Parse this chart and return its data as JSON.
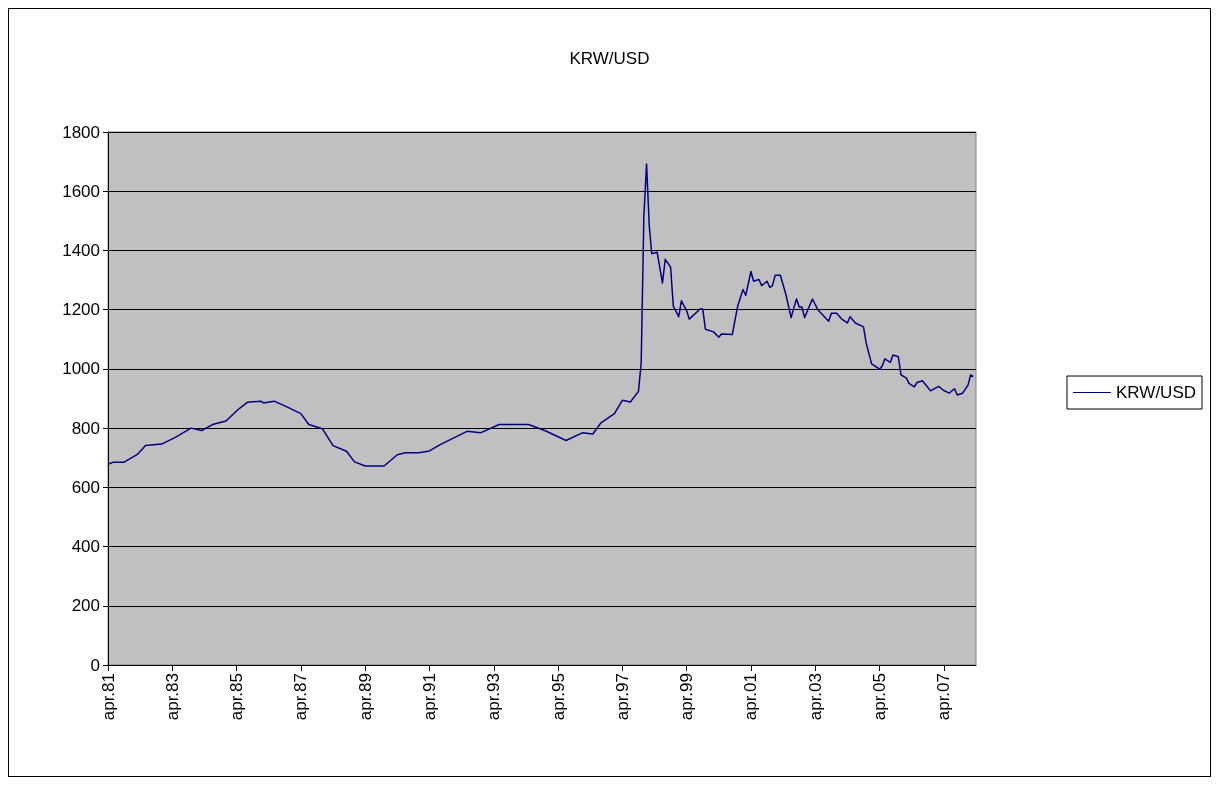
{
  "chart_data": {
    "type": "line",
    "title": "KRW/USD",
    "x": [
      "1981-04",
      "1981-06",
      "1981-10",
      "1982-03",
      "1982-06",
      "1982-12",
      "1983-05",
      "1983-11",
      "1984-03",
      "1984-07",
      "1984-12",
      "1985-05",
      "1985-08",
      "1986-01",
      "1986-02",
      "1986-06",
      "1986-10",
      "1987-04",
      "1987-07",
      "1987-12",
      "1988-04",
      "1988-09",
      "1988-12",
      "1989-04",
      "1989-11",
      "1990-04",
      "1990-07",
      "1990-12",
      "1991-04",
      "1991-08",
      "1992-06",
      "1992-11",
      "1993-06",
      "1994-05",
      "1994-11",
      "1995-07",
      "1996-01",
      "1996-05",
      "1996-08",
      "1997-01",
      "1997-04",
      "1997-07",
      "1997-10",
      "1997-11",
      "1997-12",
      "1998-01",
      "1998-02",
      "1998-03",
      "1998-05",
      "1998-07",
      "1998-08",
      "1998-10",
      "1998-11",
      "1999-01",
      "1999-02",
      "1999-04",
      "1999-05",
      "1999-09",
      "1999-10",
      "1999-11",
      "2000-02",
      "2000-04",
      "2000-05",
      "2000-09",
      "2000-11",
      "2001-01",
      "2001-02",
      "2001-04",
      "2001-05",
      "2001-07",
      "2001-08",
      "2001-10",
      "2001-11",
      "2001-12",
      "2002-01",
      "2002-03",
      "2002-05",
      "2002-07",
      "2002-08",
      "2002-09",
      "2002-10",
      "2002-11",
      "2002-12",
      "2003-03",
      "2003-05",
      "2003-09",
      "2003-10",
      "2003-12",
      "2004-02",
      "2004-04",
      "2004-05",
      "2004-07",
      "2004-10",
      "2004-11",
      "2005-01",
      "2005-04",
      "2005-05",
      "2005-06",
      "2005-08",
      "2005-09",
      "2005-11",
      "2005-12",
      "2006-02",
      "2006-03",
      "2006-05",
      "2006-06",
      "2006-08",
      "2006-11",
      "2007-02",
      "2007-04",
      "2007-06",
      "2007-08",
      "2007-09",
      "2007-11",
      "2008-01",
      "2008-02",
      "2008-03"
    ],
    "series": [
      {
        "name": "KRW/USD",
        "color": "#000080",
        "values": [
          678,
          685,
          685,
          711,
          741,
          746,
          768,
          800,
          792,
          812,
          824,
          866,
          887,
          891,
          885,
          891,
          875,
          849,
          812,
          798,
          741,
          722,
          686,
          672,
          672,
          710,
          717,
          717,
          723,
          744,
          789,
          784,
          812,
          812,
          792,
          758,
          784,
          780,
          818,
          849,
          894,
          888,
          924,
          1020,
          1512,
          1692,
          1482,
          1389,
          1394,
          1290,
          1370,
          1344,
          1212,
          1176,
          1230,
          1197,
          1168,
          1202,
          1202,
          1134,
          1125,
          1107,
          1118,
          1116,
          1212,
          1268,
          1248,
          1329,
          1296,
          1302,
          1281,
          1296,
          1275,
          1281,
          1316,
          1316,
          1254,
          1173,
          1206,
          1236,
          1209,
          1209,
          1173,
          1236,
          1200,
          1161,
          1188,
          1188,
          1167,
          1155,
          1176,
          1155,
          1142,
          1086,
          1017,
          999,
          1010,
          1034,
          1022,
          1047,
          1041,
          980,
          969,
          951,
          939,
          954,
          960,
          926,
          941,
          927,
          918,
          933,
          912,
          918,
          945,
          980,
          974
        ]
      }
    ],
    "xlim": [
      "1981-04",
      "2008-04"
    ],
    "xticks": [
      {
        "value": "1981-04",
        "label": "apr.81"
      },
      {
        "value": "1983-04",
        "label": "apr.83"
      },
      {
        "value": "1985-04",
        "label": "apr.85"
      },
      {
        "value": "1987-04",
        "label": "apr.87"
      },
      {
        "value": "1989-04",
        "label": "apr.89"
      },
      {
        "value": "1991-04",
        "label": "apr.91"
      },
      {
        "value": "1993-04",
        "label": "apr.93"
      },
      {
        "value": "1995-04",
        "label": "apr.95"
      },
      {
        "value": "1997-04",
        "label": "apr.97"
      },
      {
        "value": "1999-04",
        "label": "apr.99"
      },
      {
        "value": "2001-04",
        "label": "apr.01"
      },
      {
        "value": "2003-04",
        "label": "apr.03"
      },
      {
        "value": "2005-04",
        "label": "apr.05"
      },
      {
        "value": "2007-04",
        "label": "apr.07"
      }
    ],
    "ylim": [
      0,
      1800
    ],
    "yticks": [
      0,
      200,
      400,
      600,
      800,
      1000,
      1200,
      1400,
      1600,
      1800
    ],
    "grid": "y",
    "legend": "right",
    "marker": "none",
    "line_style": "solid"
  }
}
